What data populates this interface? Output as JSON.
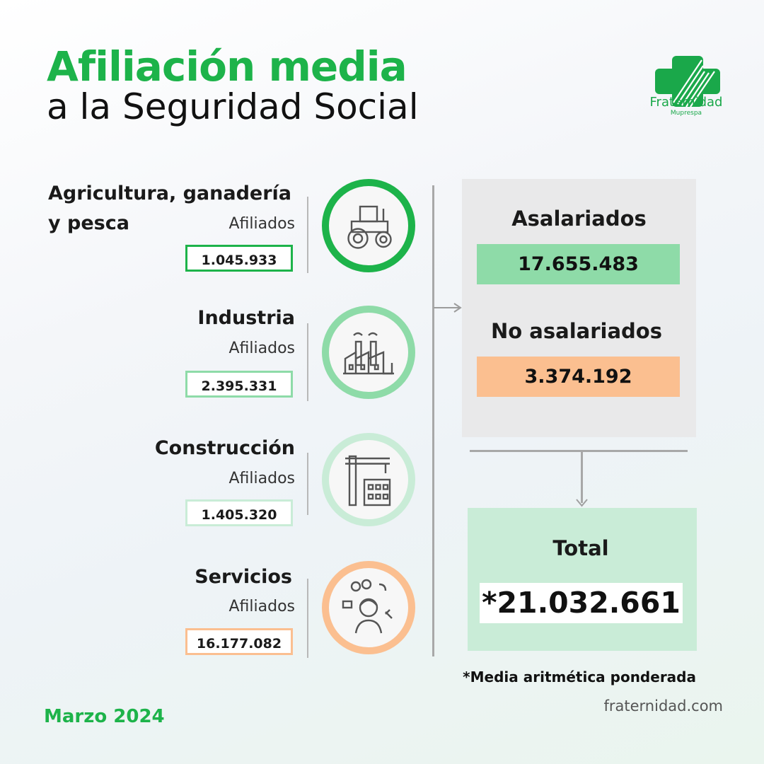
{
  "title": {
    "line1": "Afiliación media",
    "line2": "a la Seguridad Social"
  },
  "logo": {
    "name": "Fraternidad",
    "subname": "Muprespa"
  },
  "sectors": [
    {
      "name_line1": "Agricultura, ganadería",
      "name_line2": "y pesca",
      "label": "Afiliados",
      "value": "1.045.933",
      "icon": "tractor-icon"
    },
    {
      "name_line1": "Industria",
      "label": "Afiliados",
      "value": "2.395.331",
      "icon": "factory-icon"
    },
    {
      "name_line1": "Construcción",
      "label": "Afiliados",
      "value": "1.405.320",
      "icon": "crane-icon"
    },
    {
      "name_line1": "Servicios",
      "label": "Afiliados",
      "value": "16.177.082",
      "icon": "customer-service-icon"
    }
  ],
  "summary": {
    "asalariados_label": "Asalariados",
    "asalariados_value": "17.655.483",
    "no_asalariados_label": "No asalariados",
    "no_asalariados_value": "3.374.192",
    "total_label": "Total",
    "total_value": "*21.032.661"
  },
  "footnote": "*Media aritmética ponderada",
  "website": "fraternidad.com",
  "date": "Marzo 2024",
  "colors": {
    "brand_green": "#1db34a",
    "green_bar": "#8edba8",
    "orange_bar": "#fbbf90",
    "total_bg": "#c9ecd7"
  }
}
